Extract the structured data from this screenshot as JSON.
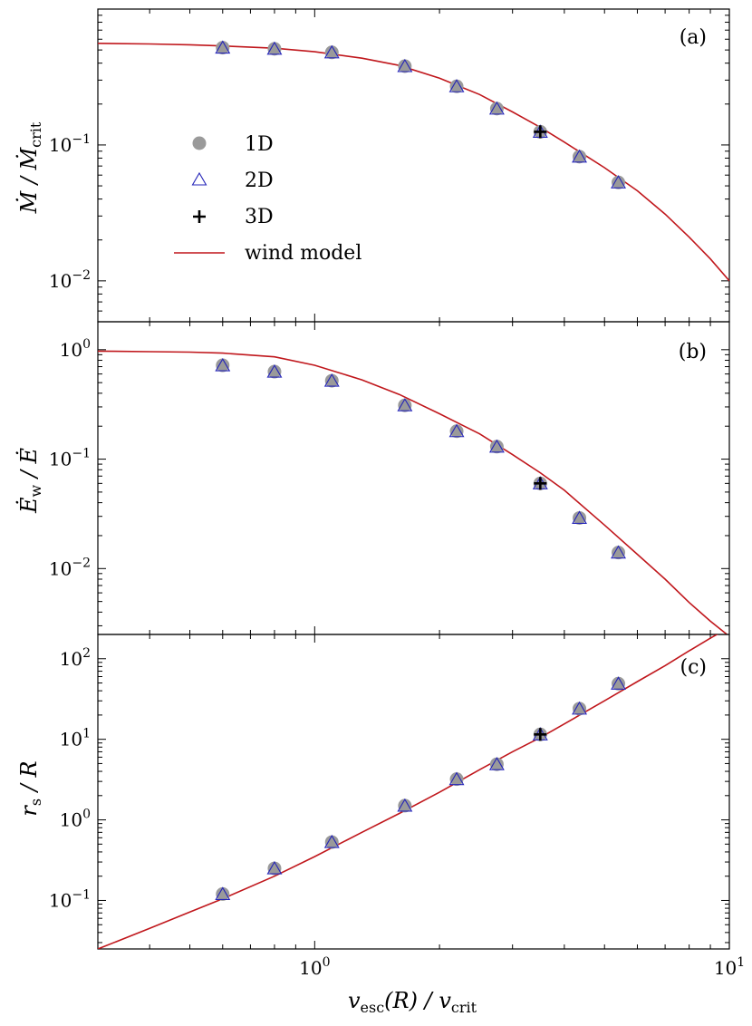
{
  "chart_data": [
    {
      "type": "scatter",
      "panel": "(a)",
      "ylabel": "Ṁ / Ṁ_crit",
      "ylabel_parts": {
        "base": "Ṁ",
        "mid": " / Ṁ",
        "sub": "crit"
      },
      "xscale": "log",
      "yscale": "log",
      "xlim": [
        0.3,
        10
      ],
      "ylim": [
        0.005,
        1.0
      ],
      "yticks": [
        {
          "value": 0.1,
          "base": "10",
          "exp": "−1"
        },
        {
          "value": 0.01,
          "base": "10",
          "exp": "−2"
        }
      ],
      "legend": {
        "placement": "left-center",
        "entries": [
          "1D",
          "2D",
          "3D",
          "wind model"
        ]
      },
      "series": [
        {
          "name": "1D",
          "x": [
            0.6,
            0.8,
            1.1,
            1.65,
            2.2,
            2.75,
            3.5,
            4.35,
            5.4
          ],
          "y": [
            0.52,
            0.51,
            0.48,
            0.38,
            0.27,
            0.185,
            0.125,
            0.082,
            0.053
          ]
        },
        {
          "name": "2D",
          "x": [
            0.6,
            0.8,
            1.1,
            1.65,
            2.2,
            2.75,
            3.5,
            4.35,
            5.4
          ],
          "y": [
            0.52,
            0.51,
            0.48,
            0.38,
            0.27,
            0.185,
            0.125,
            0.082,
            0.053
          ]
        },
        {
          "name": "3D",
          "x": [
            3.5
          ],
          "y": [
            0.125
          ]
        },
        {
          "name": "wind model",
          "x": [
            0.3,
            0.4,
            0.5,
            0.6,
            0.8,
            1.0,
            1.3,
            1.6,
            2.0,
            2.5,
            3.0,
            3.5,
            4.0,
            5.0,
            6.0,
            7.0,
            8.0,
            9.0,
            10.0
          ],
          "y": [
            0.56,
            0.554,
            0.546,
            0.535,
            0.515,
            0.485,
            0.435,
            0.385,
            0.31,
            0.235,
            0.175,
            0.135,
            0.105,
            0.068,
            0.046,
            0.031,
            0.021,
            0.0145,
            0.01
          ]
        }
      ]
    },
    {
      "type": "scatter",
      "panel": "(b)",
      "ylabel": "Ė_w / Ė",
      "ylabel_parts": {
        "base": "Ė",
        "sub": "w",
        "rest": " / Ė"
      },
      "xscale": "log",
      "yscale": "log",
      "xlim": [
        0.3,
        10
      ],
      "ylim": [
        0.0025,
        1.8
      ],
      "yticks": [
        {
          "value": 1,
          "base": "10",
          "exp": "0"
        },
        {
          "value": 0.1,
          "base": "10",
          "exp": "−1"
        },
        {
          "value": 0.01,
          "base": "10",
          "exp": "−2"
        }
      ],
      "series": [
        {
          "name": "1D",
          "x": [
            0.6,
            0.8,
            1.1,
            1.65,
            2.2,
            2.75,
            3.5,
            4.35,
            5.4
          ],
          "y": [
            0.72,
            0.63,
            0.52,
            0.31,
            0.18,
            0.13,
            0.06,
            0.029,
            0.014
          ]
        },
        {
          "name": "2D",
          "x": [
            0.6,
            0.8,
            1.1,
            1.65,
            2.2,
            2.75,
            3.5,
            4.35,
            5.4
          ],
          "y": [
            0.72,
            0.63,
            0.52,
            0.31,
            0.18,
            0.13,
            0.06,
            0.029,
            0.014
          ]
        },
        {
          "name": "3D",
          "x": [
            3.5
          ],
          "y": [
            0.06
          ]
        },
        {
          "name": "wind model",
          "x": [
            0.3,
            0.4,
            0.5,
            0.6,
            0.8,
            1.0,
            1.3,
            1.6,
            2.0,
            2.5,
            3.0,
            3.5,
            4.0,
            5.0,
            6.0,
            7.0,
            8.0,
            9.0,
            10.0
          ],
          "y": [
            0.97,
            0.96,
            0.95,
            0.93,
            0.86,
            0.72,
            0.53,
            0.39,
            0.26,
            0.17,
            0.11,
            0.075,
            0.052,
            0.025,
            0.0135,
            0.008,
            0.0049,
            0.0033,
            0.0024
          ]
        }
      ]
    },
    {
      "type": "scatter",
      "panel": "(c)",
      "ylabel": "r_s / R",
      "ylabel_parts": {
        "base": "r",
        "sub": "s",
        "rest": " / R"
      },
      "xlabel": "v_esc(R) / v_crit",
      "xlabel_parts": {
        "base": "v",
        "sub": "esc",
        "mid": "(R) / v",
        "sub2": "crit"
      },
      "xscale": "log",
      "yscale": "log",
      "xlim": [
        0.3,
        10
      ],
      "ylim": [
        0.025,
        200
      ],
      "xticks": [
        {
          "value": 1,
          "base": "10",
          "exp": "0"
        },
        {
          "value": 10,
          "base": "10",
          "exp": "1"
        }
      ],
      "yticks": [
        {
          "value": 100,
          "base": "10",
          "exp": "2"
        },
        {
          "value": 10,
          "base": "10",
          "exp": "1"
        },
        {
          "value": 1,
          "base": "10",
          "exp": "0"
        },
        {
          "value": 0.1,
          "base": "10",
          "exp": "−1"
        }
      ],
      "series": [
        {
          "name": "1D",
          "x": [
            0.6,
            0.8,
            1.1,
            1.65,
            2.2,
            2.75,
            3.5,
            4.35,
            5.4
          ],
          "y": [
            0.12,
            0.25,
            0.53,
            1.5,
            3.2,
            4.9,
            11.5,
            24,
            49
          ]
        },
        {
          "name": "2D",
          "x": [
            0.6,
            0.8,
            1.1,
            1.65,
            2.2,
            2.75,
            3.5,
            4.35,
            5.4
          ],
          "y": [
            0.12,
            0.25,
            0.53,
            1.5,
            3.2,
            4.9,
            11.5,
            24,
            49
          ]
        },
        {
          "name": "3D",
          "x": [
            3.5
          ],
          "y": [
            11.5
          ]
        },
        {
          "name": "wind model",
          "x": [
            0.3,
            0.4,
            0.5,
            0.6,
            0.8,
            1.0,
            1.3,
            1.6,
            2.0,
            2.5,
            3.0,
            3.5,
            4.0,
            5.0,
            6.0,
            7.0,
            8.0,
            9.0,
            10.0
          ],
          "y": [
            0.025,
            0.045,
            0.072,
            0.105,
            0.2,
            0.35,
            0.7,
            1.2,
            2.2,
            4.2,
            7.0,
            10.5,
            15.5,
            30,
            52,
            82,
            125,
            180,
            245
          ]
        }
      ]
    }
  ],
  "legend_labels": {
    "l1": "1D",
    "l2": "2D",
    "l3": "3D",
    "l4": "wind model"
  },
  "panel_tags": {
    "a": "(a)",
    "b": "(b)",
    "c": "(c)"
  }
}
